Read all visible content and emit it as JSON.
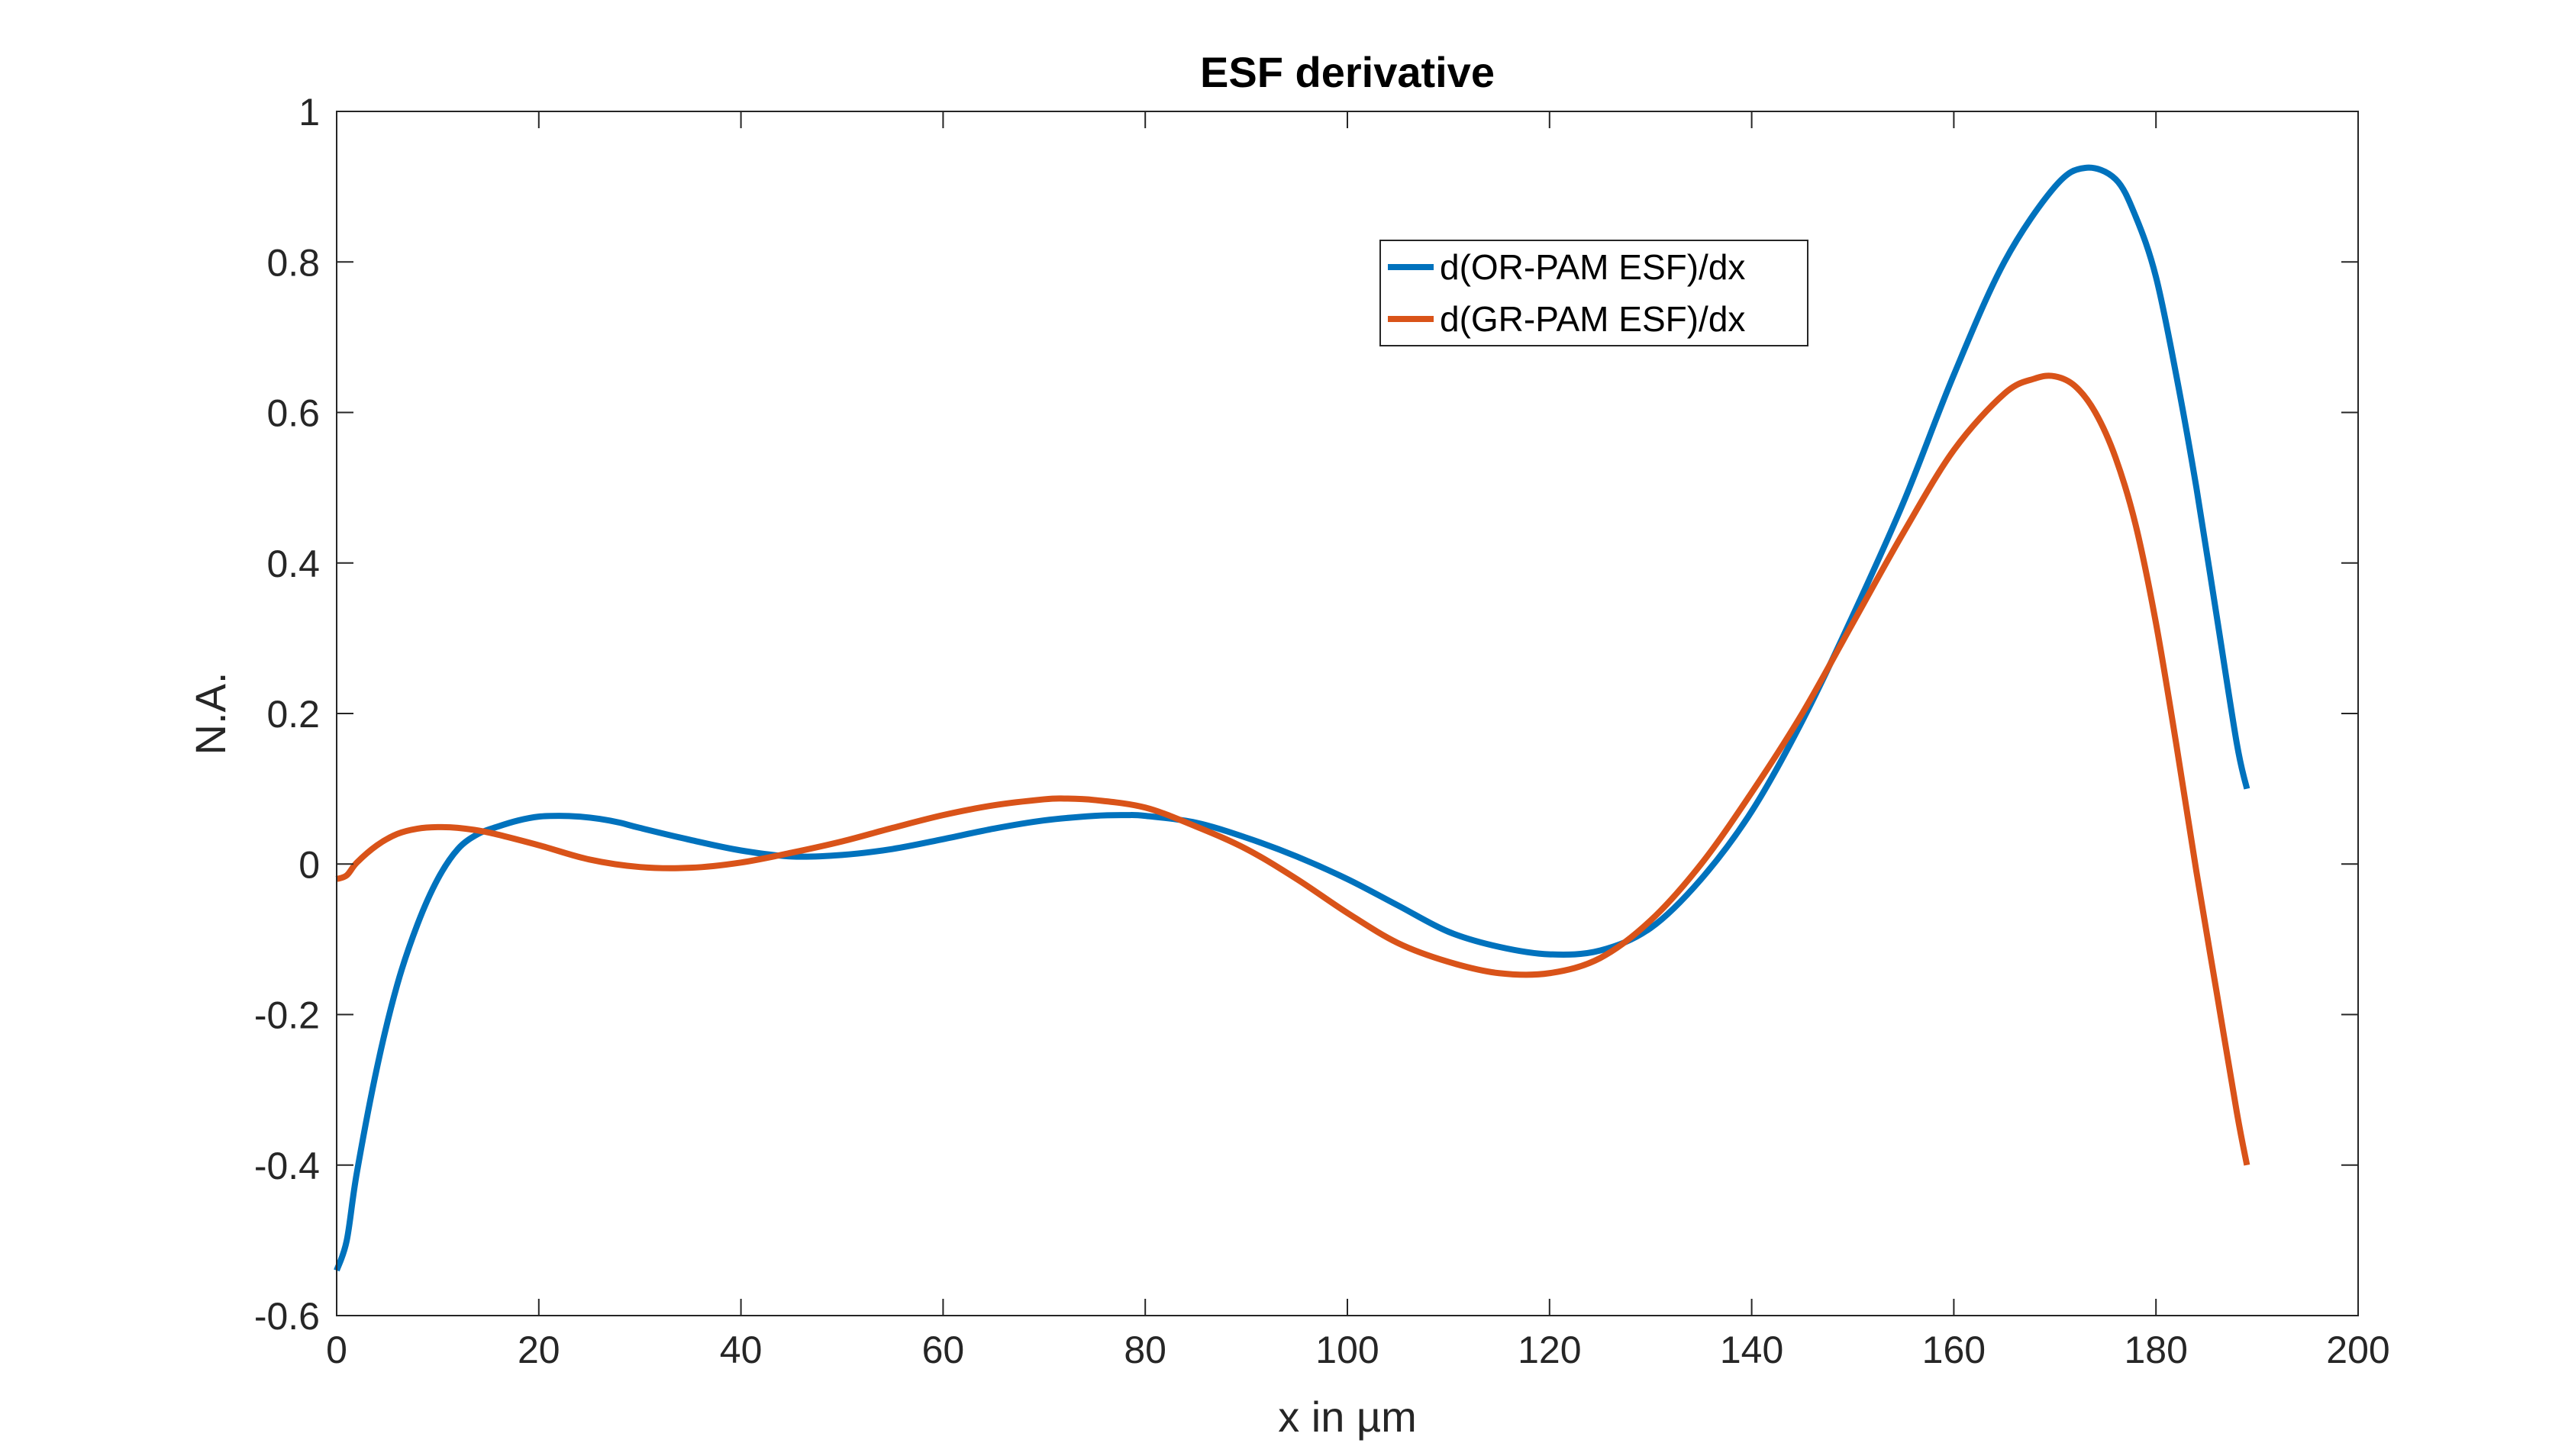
{
  "chart_data": {
    "type": "line",
    "title": "ESF derivative",
    "xlabel": "x in µm",
    "ylabel": "N.A.",
    "xlim": [
      0,
      200
    ],
    "ylim": [
      -0.6,
      1
    ],
    "xticks": [
      0,
      20,
      40,
      60,
      80,
      100,
      120,
      140,
      160,
      180,
      200
    ],
    "yticks": [
      -0.6,
      -0.4,
      -0.2,
      0,
      0.2,
      0.4,
      0.6,
      0.8,
      1
    ],
    "xtick_labels": [
      "0",
      "20",
      "40",
      "60",
      "80",
      "100",
      "120",
      "140",
      "160",
      "180",
      "200"
    ],
    "ytick_labels": [
      "-0.6",
      "-0.4",
      "-0.2",
      "0",
      "0.2",
      "0.4",
      "0.6",
      "0.8",
      "1"
    ],
    "grid": false,
    "legend_position": "top-right",
    "series": [
      {
        "name": "d(OR-PAM ESF)/dx",
        "color": "#0072BD",
        "x": [
          0,
          1,
          2,
          4,
          6,
          8,
          10,
          12,
          14,
          16,
          18,
          20,
          22,
          24,
          26,
          28,
          30,
          35,
          40,
          45,
          50,
          55,
          60,
          65,
          70,
          75,
          78,
          80,
          85,
          90,
          95,
          100,
          105,
          110,
          115,
          120,
          125,
          130,
          135,
          140,
          145,
          150,
          155,
          160,
          165,
          170,
          173,
          176,
          178,
          180,
          182,
          184,
          186,
          188,
          189
        ],
        "y": [
          -0.54,
          -0.5,
          -0.41,
          -0.27,
          -0.16,
          -0.08,
          -0.02,
          0.02,
          0.04,
          0.05,
          0.058,
          0.063,
          0.064,
          0.063,
          0.06,
          0.055,
          0.048,
          0.032,
          0.018,
          0.01,
          0.012,
          0.02,
          0.033,
          0.047,
          0.058,
          0.064,
          0.065,
          0.064,
          0.055,
          0.035,
          0.01,
          -0.02,
          -0.055,
          -0.09,
          -0.11,
          -0.12,
          -0.115,
          -0.085,
          -0.02,
          0.07,
          0.19,
          0.33,
          0.48,
          0.65,
          0.8,
          0.9,
          0.925,
          0.91,
          0.86,
          0.78,
          0.65,
          0.5,
          0.33,
          0.16,
          0.1
        ]
      },
      {
        "name": "d(GR-PAM ESF)/dx",
        "color": "#D95319",
        "x": [
          0,
          1,
          2,
          4,
          6,
          8,
          10,
          12,
          15,
          20,
          25,
          30,
          35,
          40,
          45,
          50,
          55,
          60,
          65,
          70,
          72,
          75,
          80,
          85,
          90,
          95,
          100,
          105,
          110,
          115,
          120,
          125,
          130,
          135,
          140,
          145,
          150,
          155,
          160,
          165,
          168,
          170,
          172,
          174,
          176,
          178,
          180,
          182,
          184,
          186,
          188,
          189
        ],
        "y": [
          -0.02,
          -0.015,
          0.002,
          0.025,
          0.04,
          0.047,
          0.049,
          0.048,
          0.042,
          0.025,
          0.006,
          -0.004,
          -0.005,
          0.002,
          0.015,
          0.03,
          0.048,
          0.065,
          0.078,
          0.086,
          0.087,
          0.085,
          0.075,
          0.05,
          0.02,
          -0.02,
          -0.065,
          -0.105,
          -0.13,
          -0.145,
          -0.145,
          -0.125,
          -0.075,
          0.0,
          0.095,
          0.2,
          0.32,
          0.44,
          0.55,
          0.625,
          0.645,
          0.648,
          0.635,
          0.6,
          0.54,
          0.45,
          0.32,
          0.16,
          -0.01,
          -0.17,
          -0.33,
          -0.4
        ]
      }
    ]
  }
}
